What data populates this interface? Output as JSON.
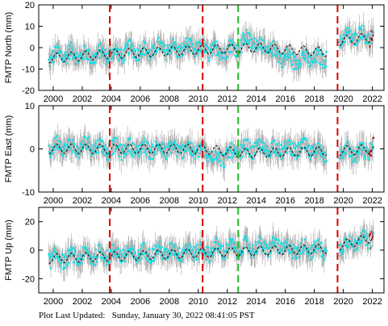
{
  "footer": {
    "label": "Plot Last Updated:",
    "value": "Sunday, January 30, 2022 08:41:05 PST"
  },
  "colors": {
    "points": "#00e5ee",
    "error_bars": "#aaaaaa",
    "model": "#000000",
    "offset_red": "#dd0000",
    "offset_green": "#22bb22",
    "recent_points": "#dd0000"
  },
  "chart_data": [
    {
      "type": "scatter",
      "ylabel": "FMTP North (mm)",
      "ylim": [
        -20,
        20
      ],
      "yticks": [
        -20,
        -10,
        0,
        10,
        20
      ],
      "xlim": [
        1999.0,
        2022.8
      ],
      "xticks": [
        2000,
        2002,
        2004,
        2006,
        2008,
        2010,
        2012,
        2014,
        2016,
        2018,
        2020,
        2022
      ],
      "grid": false,
      "series": [
        {
          "kind": "observations",
          "x": [
            1999.7,
            2000.5,
            2001.5,
            2002.5,
            2003.5,
            2004.5,
            2005.5,
            2006.5,
            2007.5,
            2008.5,
            2009.5,
            2010.5,
            2011.5,
            2012.5,
            2013.5,
            2014.5,
            2015.5,
            2016.5,
            2017.5,
            2018.5,
            2019.8,
            2020.5,
            2021.5,
            2022.1
          ],
          "y": [
            -5,
            -3,
            -3,
            -4,
            -3,
            -3,
            -1,
            -2,
            0,
            -1,
            0,
            -1,
            -2,
            0,
            4,
            0,
            -3,
            -6,
            -5,
            -6,
            4,
            5,
            6,
            5
          ]
        },
        {
          "kind": "model",
          "x": [
            1999.7,
            2003.9,
            2010.3,
            2014.0,
            2018.8,
            2019.6,
            2022.1
          ],
          "y": [
            -5,
            -3,
            -1,
            0,
            -2,
            3,
            5
          ]
        }
      ],
      "offsets": [
        {
          "x": 2003.9,
          "color": "red"
        },
        {
          "x": 2010.3,
          "color": "red"
        },
        {
          "x": 2012.75,
          "color": "green"
        },
        {
          "x": 2019.6,
          "color": "red"
        }
      ]
    },
    {
      "type": "scatter",
      "ylabel": "FMTP East (mm)",
      "ylim": [
        -10,
        10
      ],
      "yticks": [
        -10,
        0,
        10
      ],
      "xlim": [
        1999.0,
        2022.8
      ],
      "xticks": [
        2000,
        2002,
        2004,
        2006,
        2008,
        2010,
        2012,
        2014,
        2016,
        2018,
        2020,
        2022
      ],
      "grid": false,
      "series": [
        {
          "kind": "observations",
          "x": [
            1999.7,
            2000.5,
            2001.5,
            2002.5,
            2003.5,
            2004.5,
            2005.5,
            2006.5,
            2007.5,
            2008.5,
            2009.5,
            2010.5,
            2011.5,
            2012.5,
            2013.5,
            2014.5,
            2015.5,
            2016.5,
            2017.5,
            2018.5,
            2019.8,
            2020.5,
            2021.5,
            2022.1
          ],
          "y": [
            0,
            1,
            0,
            1,
            0,
            0,
            0,
            0,
            0,
            0,
            0,
            -1,
            -2,
            -1,
            0,
            0,
            0,
            0,
            0,
            -1,
            0,
            -1,
            -1,
            1
          ]
        },
        {
          "kind": "model",
          "x": [
            1999.7,
            2010.3,
            2013.0,
            2018.8,
            2019.6,
            2022.1
          ],
          "y": [
            0,
            0,
            -1,
            -0.5,
            -0.5,
            0
          ]
        }
      ],
      "offsets": [
        {
          "x": 2003.9,
          "color": "red"
        },
        {
          "x": 2010.3,
          "color": "red"
        },
        {
          "x": 2012.75,
          "color": "green"
        },
        {
          "x": 2019.6,
          "color": "red"
        }
      ]
    },
    {
      "type": "scatter",
      "ylabel": "FMTP Up (mm)",
      "ylim": [
        -30,
        30
      ],
      "yticks": [
        -20,
        0,
        20
      ],
      "xlim": [
        1999.0,
        2022.8
      ],
      "xticks": [
        2000,
        2002,
        2004,
        2006,
        2008,
        2010,
        2012,
        2014,
        2016,
        2018,
        2020,
        2022
      ],
      "grid": false,
      "series": [
        {
          "kind": "observations",
          "x": [
            1999.7,
            2000.5,
            2001.5,
            2002.5,
            2003.5,
            2004.5,
            2005.5,
            2006.5,
            2007.5,
            2008.5,
            2009.5,
            2010.5,
            2011.5,
            2012.5,
            2013.5,
            2014.5,
            2015.5,
            2016.5,
            2017.5,
            2018.5,
            2019.8,
            2020.5,
            2021.5,
            2022.1
          ],
          "y": [
            -5,
            -6,
            -5,
            -4,
            -3,
            -2,
            -3,
            -2,
            -1,
            -1,
            0,
            -1,
            1,
            1,
            2,
            2,
            3,
            0,
            1,
            0,
            3,
            5,
            8,
            9
          ]
        },
        {
          "kind": "model",
          "x": [
            1999.7,
            2010.3,
            2018.8,
            2019.6,
            2022.1
          ],
          "y": [
            -6,
            -2,
            1,
            3,
            9
          ]
        }
      ],
      "offsets": [
        {
          "x": 2003.9,
          "color": "red"
        },
        {
          "x": 2010.3,
          "color": "red"
        },
        {
          "x": 2012.75,
          "color": "green"
        },
        {
          "x": 2019.6,
          "color": "red"
        }
      ]
    }
  ]
}
